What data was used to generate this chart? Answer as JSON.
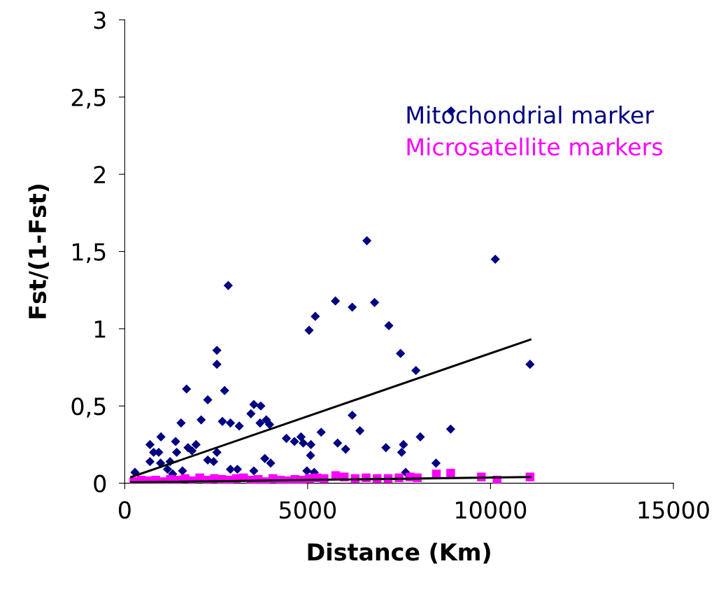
{
  "chart_data": {
    "type": "scatter",
    "xlabel": "Distance (Km)",
    "ylabel": "Fst/(1-Fst)",
    "xlim": [
      0,
      15000
    ],
    "xticks": [
      0,
      5000,
      10000,
      15000
    ],
    "ylim": [
      0,
      3
    ],
    "yticks": [
      0,
      {
        "value": 0.5,
        "label": "0,5"
      },
      1,
      {
        "value": 1.5,
        "label": "1,5"
      },
      2,
      {
        "value": 2.5,
        "label": "2,5"
      },
      3
    ],
    "grid": false,
    "legend": "top right",
    "series": [
      {
        "name": "Mitochondrial marker",
        "color": "#000080",
        "marker": "diamond",
        "x": [
          280,
          690,
          790,
          930,
          690,
          990,
          980,
          1170,
          1240,
          1390,
          1420,
          1310,
          1540,
          1580,
          1690,
          1730,
          1840,
          1950,
          2090,
          2270,
          2270,
          2430,
          2520,
          2520,
          2520,
          2730,
          2670,
          2890,
          2890,
          3080,
          3130,
          3450,
          3530,
          3720,
          3530,
          3700,
          3870,
          3960,
          3830,
          3990,
          4420,
          4640,
          4820,
          4880,
          5090,
          5370,
          5080,
          4980,
          5180,
          2830,
          5210,
          5040,
          6620,
          10130,
          5760,
          6220,
          6830,
          7220,
          7540,
          7960,
          11080,
          6220,
          6430,
          5820,
          6040,
          7140,
          7620,
          7570,
          8080,
          8910,
          8510,
          7680,
          8920
        ],
        "values": [
          0.07,
          0.25,
          0.2,
          0.2,
          0.14,
          0.3,
          0.13,
          0.09,
          0.14,
          0.27,
          0.2,
          0.06,
          0.39,
          0.08,
          0.61,
          0.23,
          0.21,
          0.25,
          0.41,
          0.54,
          0.15,
          0.14,
          0.2,
          0.77,
          0.86,
          0.6,
          0.4,
          0.39,
          0.09,
          0.09,
          0.37,
          0.45,
          0.51,
          0.5,
          0.08,
          0.39,
          0.41,
          0.38,
          0.16,
          0.13,
          0.29,
          0.27,
          0.3,
          0.26,
          0.25,
          0.33,
          0.18,
          0.08,
          0.07,
          1.28,
          1.08,
          0.99,
          1.57,
          1.45,
          1.18,
          1.14,
          1.17,
          1.02,
          0.84,
          0.73,
          0.77,
          0.44,
          0.34,
          0.26,
          0.22,
          0.23,
          0.25,
          0.2,
          0.3,
          0.35,
          0.13,
          0.07,
          2.41
        ]
      },
      {
        "name": "Microsatellite markers",
        "color": "#ff00ff",
        "marker": "square",
        "x": [
          250,
          450,
          650,
          850,
          1050,
          1250,
          1450,
          1650,
          1850,
          2050,
          2250,
          2450,
          2650,
          2850,
          3050,
          3250,
          3450,
          3650,
          3850,
          4050,
          4250,
          4450,
          4650,
          4850,
          5050,
          5250,
          5450,
          5770,
          6000,
          6300,
          6600,
          6900,
          7200,
          7500,
          7800,
          8000,
          8520,
          8910,
          9750,
          10180,
          11080
        ],
        "values": [
          0.01,
          0.02,
          0.015,
          0.02,
          0.01,
          0.025,
          0.02,
          0.03,
          0.015,
          0.035,
          0.02,
          0.03,
          0.025,
          0.02,
          0.03,
          0.035,
          0.02,
          0.025,
          0.01,
          0.03,
          0.02,
          0.015,
          0.025,
          0.02,
          0.03,
          0.035,
          0.03,
          0.05,
          0.04,
          0.03,
          0.035,
          0.03,
          0.03,
          0.035,
          0.04,
          0.035,
          0.06,
          0.065,
          0.04,
          0.02,
          0.04
        ]
      },
      {
        "type": "line",
        "color": "#000000",
        "x": [
          180,
          11090
        ],
        "values": [
          0.04,
          0.93
        ]
      },
      {
        "type": "line",
        "color": "#000000",
        "x": [
          180,
          11090
        ],
        "values": [
          0.006,
          0.04
        ]
      }
    ]
  }
}
